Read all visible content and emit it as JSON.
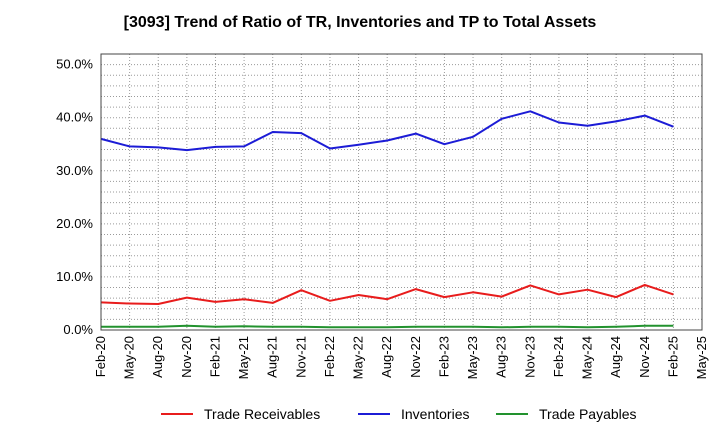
{
  "chart_data": {
    "type": "line",
    "title": "[3093]  Trend of Ratio of TR, Inventories and TP to Total Assets",
    "xlabel": "",
    "ylabel": "",
    "ylim": [
      0,
      52
    ],
    "y_ticks": [
      "0.0%",
      "10.0%",
      "20.0%",
      "30.0%",
      "40.0%",
      "50.0%"
    ],
    "y_tick_values": [
      0,
      10,
      20,
      30,
      40,
      50
    ],
    "x_ticks": [
      "Feb-20",
      "May-20",
      "Aug-20",
      "Nov-20",
      "Feb-21",
      "May-21",
      "Aug-21",
      "Nov-21",
      "Feb-22",
      "May-22",
      "Aug-22",
      "Nov-22",
      "Feb-23",
      "May-23",
      "Aug-23",
      "Nov-23",
      "Feb-24",
      "May-24",
      "Aug-24",
      "Nov-24",
      "Feb-25",
      "May-25"
    ],
    "categories": [
      "Feb-20",
      "May-20",
      "Aug-20",
      "Nov-20",
      "Feb-21",
      "May-21",
      "Aug-21",
      "Nov-21",
      "Feb-22",
      "May-22",
      "Aug-22",
      "Nov-22",
      "Feb-23",
      "May-23",
      "Aug-23",
      "Nov-23",
      "Feb-24",
      "May-24",
      "Aug-24",
      "Nov-24",
      "Feb-25"
    ],
    "grid": true,
    "legend_position": "bottom",
    "series": [
      {
        "name": "Trade Receivables",
        "color": "#e81c1c",
        "values": [
          5.2,
          5.0,
          4.9,
          6.1,
          5.3,
          5.8,
          5.1,
          7.5,
          5.5,
          6.6,
          5.8,
          7.7,
          6.2,
          7.1,
          6.3,
          8.4,
          6.7,
          7.6,
          6.2,
          8.5,
          6.7
        ]
      },
      {
        "name": "Inventories",
        "color": "#1c1cd6",
        "values": [
          36.0,
          34.6,
          34.4,
          33.9,
          34.5,
          34.6,
          37.3,
          37.1,
          34.2,
          34.9,
          35.7,
          37.0,
          35.0,
          36.4,
          39.8,
          41.2,
          39.1,
          38.5,
          39.3,
          40.4,
          38.3
        ]
      },
      {
        "name": "Trade Payables",
        "color": "#22922e",
        "values": [
          0.6,
          0.6,
          0.6,
          0.8,
          0.6,
          0.7,
          0.6,
          0.6,
          0.5,
          0.5,
          0.5,
          0.6,
          0.6,
          0.6,
          0.5,
          0.6,
          0.6,
          0.5,
          0.6,
          0.8,
          0.8
        ]
      }
    ]
  }
}
